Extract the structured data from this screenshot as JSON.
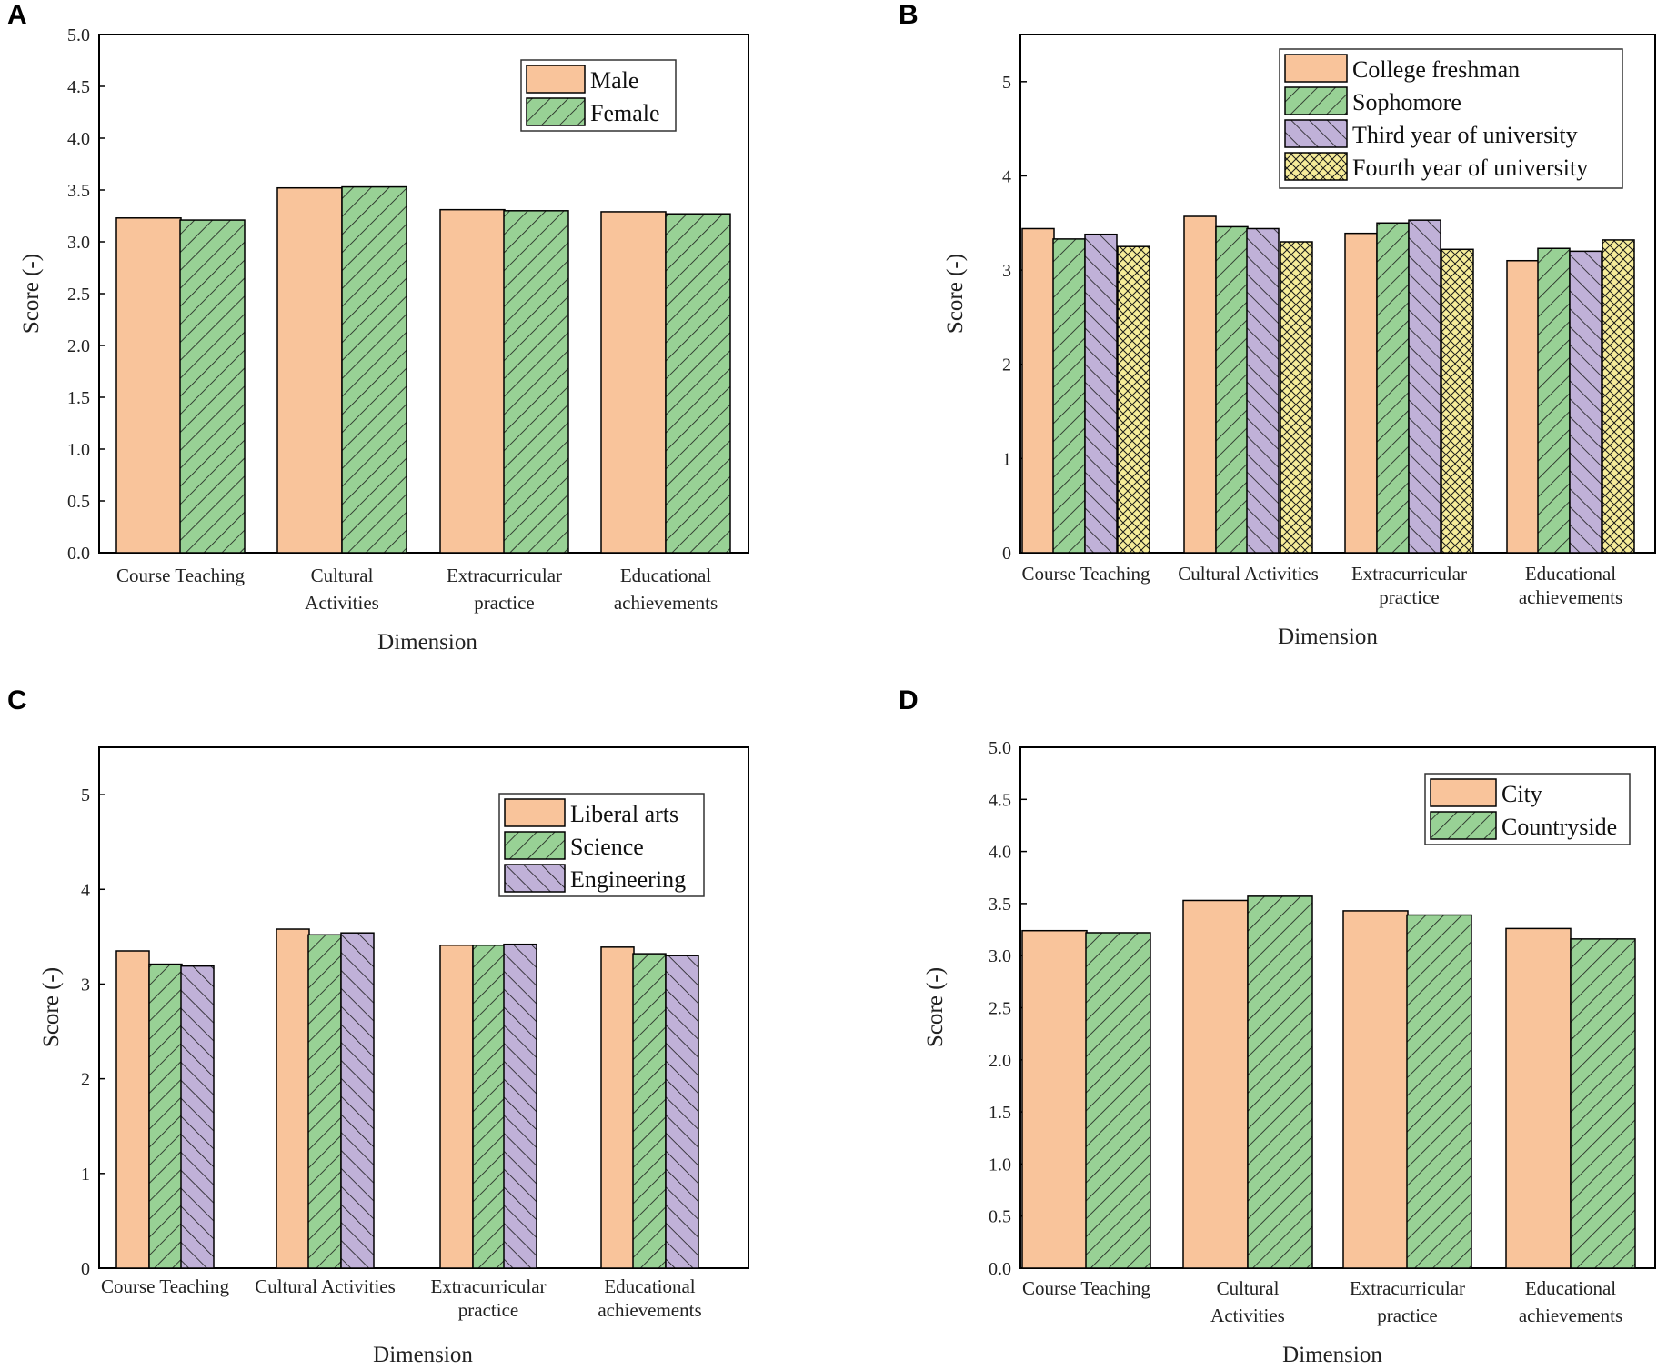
{
  "colors": {
    "orange": "#f9c49b",
    "green": "#98d195",
    "purple": "#c0b1d8",
    "yellow": "#f6ec99",
    "stroke": "#000000"
  },
  "chart_data": [
    {
      "panel": "A",
      "type": "bar",
      "xlabel": "Dimension",
      "ylabel": "Score (-)",
      "ylim": [
        0,
        5
      ],
      "yticks": [
        "0.0",
        "0.5",
        "1.0",
        "1.5",
        "2.0",
        "2.5",
        "3.0",
        "3.5",
        "4.0",
        "4.5",
        "5.0"
      ],
      "categories": [
        [
          "Course Teaching"
        ],
        [
          "Cultural",
          "Activities"
        ],
        [
          "Extracurricular",
          "practice"
        ],
        [
          "Educational",
          "achievements"
        ]
      ],
      "legend_position": "top-right",
      "series": [
        {
          "name": "Male",
          "values": [
            3.23,
            3.52,
            3.31,
            3.29
          ],
          "fill": "orange",
          "pattern": "none"
        },
        {
          "name": "Female",
          "values": [
            3.21,
            3.53,
            3.3,
            3.27
          ],
          "fill": "green",
          "pattern": "diag"
        }
      ]
    },
    {
      "panel": "B",
      "type": "bar",
      "xlabel": "Dimension",
      "ylabel": "Score (-)",
      "ylim": [
        0,
        5.5
      ],
      "yticks": [
        "0",
        "1",
        "2",
        "3",
        "4",
        "5"
      ],
      "categories": [
        [
          "Course Teaching"
        ],
        [
          "Cultural Activities"
        ],
        [
          "Extracurricular",
          "practice"
        ],
        [
          "Educational",
          "achievements"
        ]
      ],
      "legend_position": "top-right",
      "series": [
        {
          "name": "College freshman",
          "values": [
            3.44,
            3.57,
            3.39,
            3.1
          ],
          "fill": "orange",
          "pattern": "none"
        },
        {
          "name": "Sophomore",
          "values": [
            3.33,
            3.46,
            3.5,
            3.23
          ],
          "fill": "green",
          "pattern": "diag"
        },
        {
          "name": "Third year of university",
          "values": [
            3.38,
            3.44,
            3.53,
            3.2
          ],
          "fill": "purple",
          "pattern": "back"
        },
        {
          "name": "Fourth year of university",
          "values": [
            3.25,
            3.3,
            3.22,
            3.32
          ],
          "fill": "yellow",
          "pattern": "cross"
        }
      ]
    },
    {
      "panel": "C",
      "type": "bar",
      "xlabel": "Dimension",
      "ylabel": "Score (-)",
      "ylim": [
        0,
        5.5
      ],
      "yticks": [
        "0",
        "1",
        "2",
        "3",
        "4",
        "5"
      ],
      "categories": [
        [
          "Course Teaching"
        ],
        [
          "Cultural Activities"
        ],
        [
          "Extracurricular",
          "practice"
        ],
        [
          "Educational",
          "achievements"
        ]
      ],
      "legend_position": "top-right",
      "series": [
        {
          "name": "Liberal arts",
          "values": [
            3.35,
            3.58,
            3.41,
            3.39
          ],
          "fill": "orange",
          "pattern": "none"
        },
        {
          "name": "Science",
          "values": [
            3.21,
            3.52,
            3.41,
            3.32
          ],
          "fill": "green",
          "pattern": "diag"
        },
        {
          "name": "Engineering",
          "values": [
            3.19,
            3.54,
            3.42,
            3.3
          ],
          "fill": "purple",
          "pattern": "back"
        }
      ]
    },
    {
      "panel": "D",
      "type": "bar",
      "xlabel": "Dimension",
      "ylabel": "Score (-)",
      "ylim": [
        0,
        5
      ],
      "yticks": [
        "0.0",
        "0.5",
        "1.0",
        "1.5",
        "2.0",
        "2.5",
        "3.0",
        "3.5",
        "4.0",
        "4.5",
        "5.0"
      ],
      "categories": [
        [
          "Course Teaching"
        ],
        [
          "Cultural",
          "Activities"
        ],
        [
          "Extracurricular",
          "practice"
        ],
        [
          "Educational",
          "achievements"
        ]
      ],
      "legend_position": "top-right",
      "series": [
        {
          "name": "City",
          "values": [
            3.24,
            3.53,
            3.43,
            3.26
          ],
          "fill": "orange",
          "pattern": "none"
        },
        {
          "name": "Countryside",
          "values": [
            3.22,
            3.57,
            3.39,
            3.16
          ],
          "fill": "green",
          "pattern": "diag"
        }
      ]
    }
  ]
}
